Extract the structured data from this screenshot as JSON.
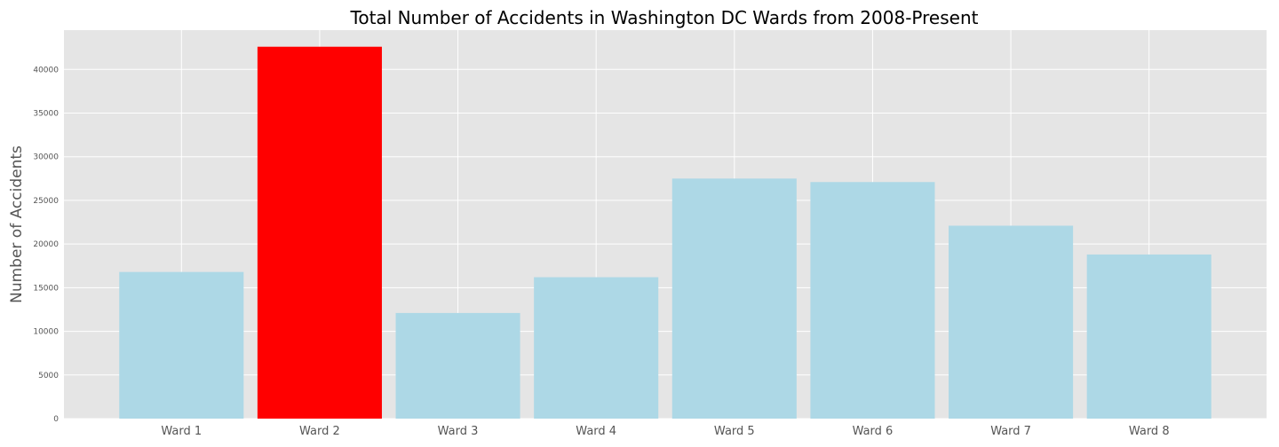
{
  "chart_data": {
    "type": "bar",
    "title": "Total Number of Accidents in Washington DC Wards from 2008-Present",
    "xlabel": "",
    "ylabel": "Number of Accidents",
    "categories": [
      "Ward 1",
      "Ward 2",
      "Ward 3",
      "Ward 4",
      "Ward 5",
      "Ward 6",
      "Ward 7",
      "Ward 8"
    ],
    "values": [
      16800,
      42600,
      12100,
      16200,
      27500,
      27100,
      22100,
      18800
    ],
    "bar_colors": [
      "#add8e6",
      "#ff0000",
      "#add8e6",
      "#add8e6",
      "#add8e6",
      "#add8e6",
      "#add8e6",
      "#add8e6"
    ],
    "ylim": [
      0,
      44500
    ],
    "yticks": [
      0,
      5000,
      10000,
      15000,
      20000,
      25000,
      30000,
      35000,
      40000
    ],
    "grid": true,
    "background_color": "#e5e5e5",
    "grid_color": "#ffffff",
    "legend": "none"
  }
}
